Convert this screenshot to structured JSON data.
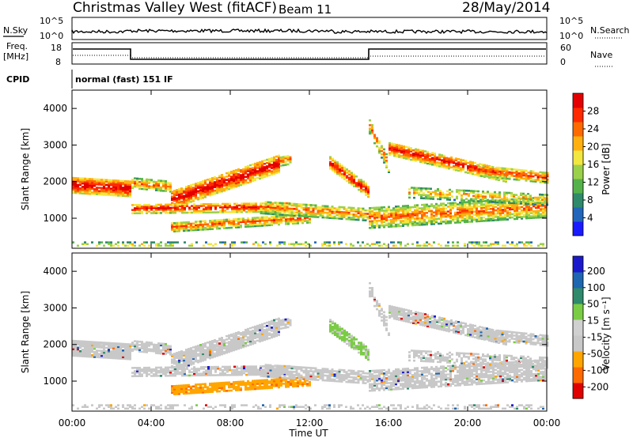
{
  "header": {
    "title": "Christmas Valley West (fitACF)",
    "beam": "Beam 11",
    "date": "28/May/2014"
  },
  "noise_panel": {
    "left_label": "N.Sky",
    "right_label": "N.Search",
    "tick_top": "10^5",
    "tick_bottom": "10^0"
  },
  "freq_panel": {
    "left_label_line1": "Freq.",
    "left_label_line2": "[MHz]",
    "right_label": "Nave",
    "left_ticks": [
      "18",
      "8"
    ],
    "right_ticks": [
      "60",
      "0"
    ]
  },
  "cpid": {
    "label": "CPID",
    "program": "normal (fast) 151 IF"
  },
  "colors": {
    "power": [
      "#1a1aff",
      "#2266bb",
      "#2e8a6a",
      "#55b24a",
      "#9bd04a",
      "#f2e640",
      "#ffb010",
      "#ff6a00",
      "#ff2a00",
      "#e40000"
    ],
    "velocity": [
      "#e00000",
      "#ff6a00",
      "#ffa500",
      "#c8c8c8",
      "#d0d0d0",
      "#7acc44",
      "#2e8a6a",
      "#1e66b0",
      "#1a1acc"
    ]
  },
  "chart_data": [
    {
      "type": "heatmap",
      "name": "power",
      "ylabel": "Slant Range [km]",
      "yticks": [
        "1000",
        "2000",
        "3000",
        "4000"
      ],
      "ylim": [
        180,
        4500
      ],
      "colorbar_label": "Power [dB]",
      "colorbar_ticks": [
        "4",
        "8",
        "12",
        "16",
        "20",
        "24",
        "28"
      ],
      "colorbar_range": [
        0,
        30
      ]
    },
    {
      "type": "heatmap",
      "name": "velocity",
      "ylabel": "Slant Range [km]",
      "yticks": [
        "1000",
        "2000",
        "3000",
        "4000"
      ],
      "ylim": [
        180,
        4500
      ],
      "colorbar_label": "Velocity [m s⁻¹]",
      "colorbar_ticks": [
        "200",
        "100",
        "50",
        "15",
        "-15",
        "-50",
        "-100",
        "-200"
      ]
    }
  ],
  "xaxis": {
    "label": "Time UT",
    "ticks": [
      "00:00",
      "04:00",
      "08:00",
      "12:00",
      "16:00",
      "20:00",
      "00:00"
    ],
    "xlim_hours": [
      0,
      24
    ]
  }
}
